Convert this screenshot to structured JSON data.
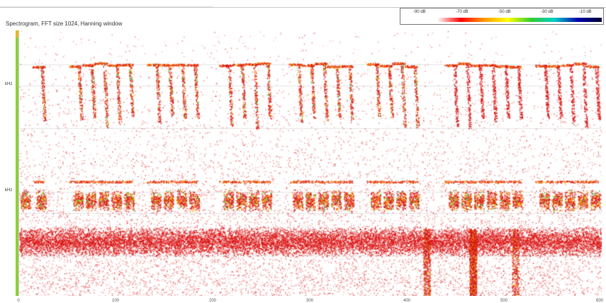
{
  "window": {
    "title": "Spectrogram, FFT size 1024, Hanning window"
  },
  "legend": {
    "ticks": [
      "-90 dB",
      "-70 dB",
      "-50 dB",
      "-30 dB",
      "-10 dB"
    ],
    "colors": [
      "#ffffff",
      "#ff0000",
      "#ff9900",
      "#ffff00",
      "#33cc33",
      "#00cccc",
      "#0000aa",
      "#000033"
    ]
  },
  "y_axis": {
    "ticks": [
      "kHz",
      "kHz"
    ]
  },
  "x_axis": {
    "ticks": [
      "0",
      "100",
      "200",
      "300",
      "400",
      "500",
      "600"
    ]
  },
  "colors": {
    "accent_strip": "#8ccf3a",
    "strip_top": "#e8b820",
    "low": "#ff3333",
    "mid": "#ff9900",
    "high": "#33cc33"
  }
}
